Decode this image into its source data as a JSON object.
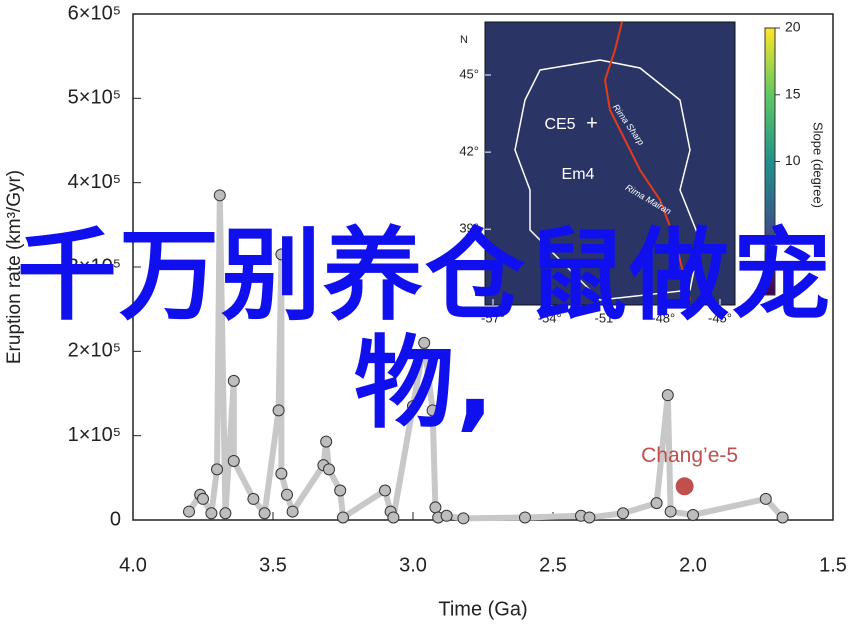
{
  "chart_data": {
    "type": "scatter",
    "xlabel": "Time (Ga)",
    "ylabel": "Eruption rate (km³/Gyr)",
    "xlim": [
      4.0,
      1.5
    ],
    "ylim": [
      0,
      600000
    ],
    "xticks": [
      {
        "value": 4,
        "label": "4.0"
      },
      3.5,
      {
        "value": 3,
        "label": "3.0"
      },
      2.5,
      {
        "value": 2,
        "label": "2.0"
      },
      1.5
    ],
    "yticks": [
      0,
      {
        "value": 100000,
        "label": "1×10⁵"
      },
      {
        "value": 200000,
        "label": "2×10⁵"
      },
      {
        "value": 300000,
        "label": "3×10⁵"
      },
      {
        "value": 400000,
        "label": "4×10⁵"
      },
      {
        "value": 500000,
        "label": "5×10⁵"
      },
      {
        "value": 600000,
        "label": "6×10⁵"
      }
    ],
    "series": [
      {
        "color": "#c8c8c8",
        "x": [
          3.8,
          3.76,
          3.75,
          3.72,
          3.7,
          3.69,
          3.67,
          3.64,
          3.64,
          3.57,
          3.53,
          3.48,
          3.47,
          3.47,
          3.45,
          3.43,
          3.32,
          3.31,
          3.3,
          3.26,
          3.25,
          3.1,
          3.08,
          3.07,
          3.0,
          2.96,
          2.93,
          2.92,
          2.91,
          2.88,
          2.82,
          2.6,
          2.4,
          2.37,
          2.25,
          2.13,
          2.09,
          2.08,
          2.0,
          1.74,
          1.68
        ],
        "values": [
          10000,
          30000,
          25000,
          8000,
          60000,
          385000,
          8000,
          165000,
          70000,
          25000,
          8000,
          130000,
          315000,
          55000,
          30000,
          10000,
          65000,
          93000,
          60000,
          35000,
          3000,
          35000,
          10000,
          3000,
          135000,
          210000,
          130000,
          15000,
          3000,
          5000,
          2000,
          3000,
          5000,
          3000,
          8000,
          20000,
          148000,
          10000,
          6000,
          25000,
          3000
        ]
      },
      {
        "name": "Chang’e-5",
        "color": "#c0504d",
        "x": [
          2.03
        ],
        "values": [
          40000
        ]
      }
    ],
    "inset": {
      "north": "N",
      "lat": {
        "lim": [
          36,
          45
        ],
        "ticks": [
          {
            "value": 45,
            "label": "45°"
          },
          {
            "value": 42,
            "label": "42°"
          },
          {
            "value": 39,
            "label": "39°"
          }
        ]
      },
      "lon": {
        "lim": [
          -57,
          -45
        ],
        "ticks": [
          {
            "value": -57,
            "label": "-57°"
          },
          {
            "value": -54,
            "label": "-54°"
          },
          {
            "value": -51,
            "label": "-51°"
          },
          {
            "value": -48,
            "label": "-48°"
          },
          {
            "value": -45,
            "label": "-45°"
          }
        ]
      },
      "colorbar": {
        "lim": [
          0,
          20
        ],
        "ticks": [
          10,
          15,
          20
        ],
        "label": "Slope (degree)"
      },
      "regions": [
        "CE5",
        "Em4"
      ],
      "rilles": [
        "Rima Sharp",
        "Rima Mairan"
      ]
    },
    "overlay_text": "千万别养仓鼠做宠物,"
  }
}
